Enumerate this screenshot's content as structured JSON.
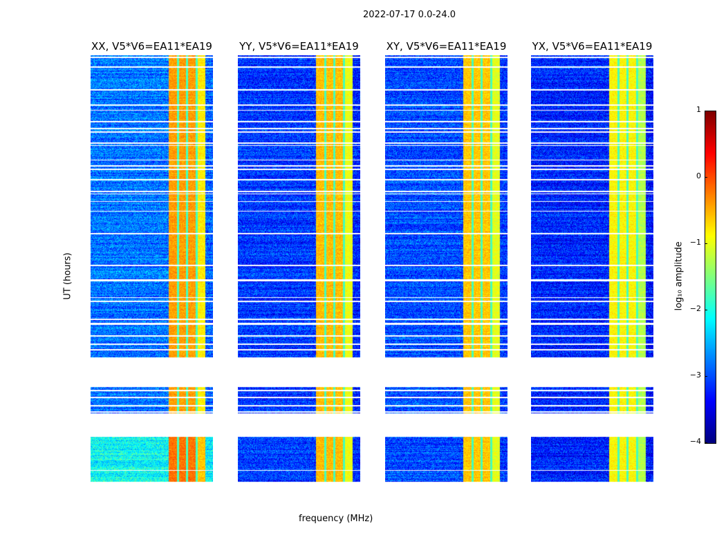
{
  "chart_data": {
    "type": "heatmap",
    "title": "2022-07-17 0.0-24.0",
    "xlabel": "frequency (MHz)",
    "ylabel": "UT (hours)",
    "xlim": [
      320,
      384
    ],
    "ylim": [
      0,
      24
    ],
    "xticks": [
      320,
      335,
      350,
      365,
      380
    ],
    "yticks": [
      0,
      5,
      10,
      15,
      20
    ],
    "data_segments_hours": [
      [
        0.85,
        1.45
      ],
      [
        1.5,
        3.3
      ],
      [
        4.55,
        6.0
      ],
      [
        7.6,
        24.0
      ]
    ],
    "rfi_band_mhz": [
      360.5,
      380
    ],
    "subband_edges_mhz": [
      365.5,
      370.2,
      375.2
    ],
    "panels": [
      {
        "title": "XX, V5*V6=EA11*EA19",
        "background_log_amp": -2.8,
        "band_log_amp": -0.4
      },
      {
        "title": "YY, V5*V6=EA11*EA19",
        "background_log_amp": -3.1,
        "band_log_amp": -0.55
      },
      {
        "title": "XY, V5*V6=EA11*EA19",
        "background_log_amp": -3.0,
        "band_log_amp": -0.6
      },
      {
        "title": "YX, V5*V6=EA11*EA19",
        "background_log_amp": -3.2,
        "band_log_amp": -0.85
      }
    ],
    "colorbar": {
      "label": "log₁₀ amplitude",
      "range": [
        -4,
        1
      ],
      "ticks": [
        1,
        0,
        -1,
        -2,
        -3,
        -4
      ],
      "tick_labels": [
        "1",
        "0",
        "−1",
        "−2",
        "−3",
        "−4"
      ],
      "colormap": "jet"
    }
  }
}
